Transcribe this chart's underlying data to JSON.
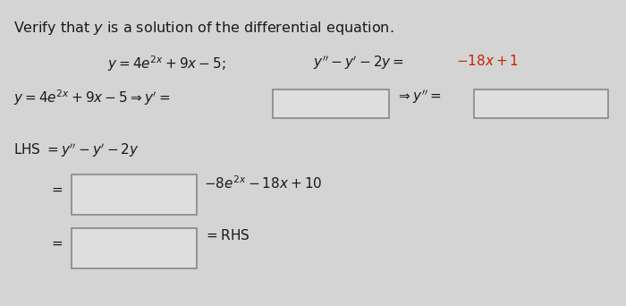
{
  "bg_color": "#d4d4d4",
  "text_color": "#1a1a1a",
  "red_color": "#cc2200",
  "box_fill": "#dedede",
  "box_edge": "#888888",
  "figsize": [
    7.0,
    3.42
  ],
  "dpi": 100,
  "title": "Verify that $y$ is a solution of the differential equation.",
  "fs_title": 11.5,
  "fs_body": 11.0
}
